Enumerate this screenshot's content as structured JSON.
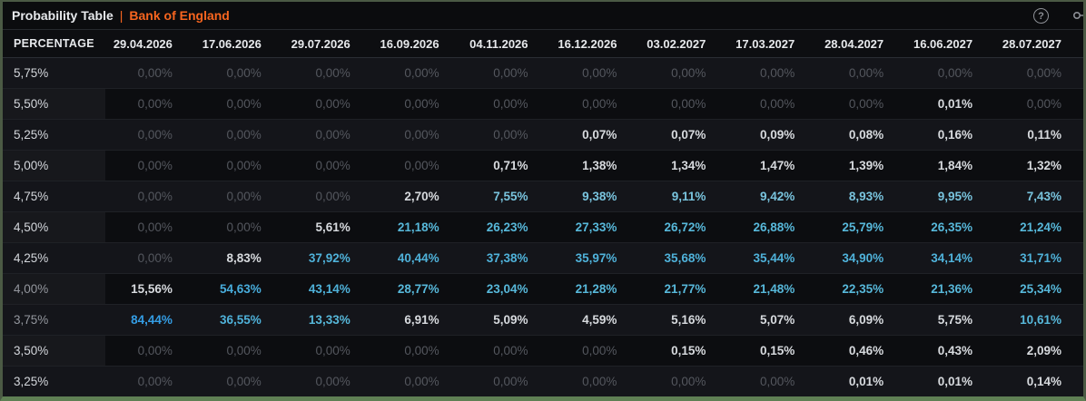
{
  "panel": {
    "title": "Probability Table",
    "separator": "|",
    "source": "Bank of England",
    "icons": [
      {
        "name": "help-icon",
        "glyph": "?"
      },
      {
        "name": "key-icon",
        "glyph": "key"
      }
    ]
  },
  "colors": {
    "accent_orange": "#f7651f",
    "zero_gray": "#54575e",
    "value_white": "#d7dade",
    "cyan_light": "#79c4de",
    "cyan": "#57b8da",
    "cyan_deep": "#4fb2da",
    "blue_max": "#349de4",
    "frame_green": "#4b5a44",
    "frame_green_bottom": "#5f8054"
  },
  "table": {
    "corner_label": "PERCENTAGE",
    "columns": [
      "29.04.2026",
      "17.06.2026",
      "29.07.2026",
      "16.09.2026",
      "04.11.2026",
      "16.12.2026",
      "03.02.2027",
      "17.03.2027",
      "28.04.2027",
      "16.06.2027",
      "28.07.2027"
    ],
    "rows": [
      {
        "label": "5,75%",
        "dim": false,
        "values": [
          "0,00%",
          "0,00%",
          "0,00%",
          "0,00%",
          "0,00%",
          "0,00%",
          "0,00%",
          "0,00%",
          "0,00%",
          "0,00%",
          "0,00%"
        ]
      },
      {
        "label": "5,50%",
        "dim": false,
        "values": [
          "0,00%",
          "0,00%",
          "0,00%",
          "0,00%",
          "0,00%",
          "0,00%",
          "0,00%",
          "0,00%",
          "0,00%",
          "0,01%",
          "0,00%"
        ]
      },
      {
        "label": "5,25%",
        "dim": false,
        "values": [
          "0,00%",
          "0,00%",
          "0,00%",
          "0,00%",
          "0,00%",
          "0,07%",
          "0,07%",
          "0,09%",
          "0,08%",
          "0,16%",
          "0,11%"
        ]
      },
      {
        "label": "5,00%",
        "dim": false,
        "values": [
          "0,00%",
          "0,00%",
          "0,00%",
          "0,00%",
          "0,71%",
          "1,38%",
          "1,34%",
          "1,47%",
          "1,39%",
          "1,84%",
          "1,32%"
        ]
      },
      {
        "label": "4,75%",
        "dim": false,
        "values": [
          "0,00%",
          "0,00%",
          "0,00%",
          "2,70%",
          "7,55%",
          "9,38%",
          "9,11%",
          "9,42%",
          "8,93%",
          "9,95%",
          "7,43%"
        ]
      },
      {
        "label": "4,50%",
        "dim": false,
        "values": [
          "0,00%",
          "0,00%",
          "5,61%",
          "21,18%",
          "26,23%",
          "27,33%",
          "26,72%",
          "26,88%",
          "25,79%",
          "26,35%",
          "21,24%"
        ]
      },
      {
        "label": "4,25%",
        "dim": false,
        "values": [
          "0,00%",
          "8,83%",
          "37,92%",
          "40,44%",
          "37,38%",
          "35,97%",
          "35,68%",
          "35,44%",
          "34,90%",
          "34,14%",
          "31,71%"
        ]
      },
      {
        "label": "4,00%",
        "dim": true,
        "values": [
          "15,56%",
          "54,63%",
          "43,14%",
          "28,77%",
          "23,04%",
          "21,28%",
          "21,77%",
          "21,48%",
          "22,35%",
          "21,36%",
          "25,34%"
        ]
      },
      {
        "label": "3,75%",
        "dim": true,
        "values": [
          "84,44%",
          "36,55%",
          "13,33%",
          "6,91%",
          "5,09%",
          "4,59%",
          "5,16%",
          "5,07%",
          "6,09%",
          "5,75%",
          "10,61%"
        ]
      },
      {
        "label": "3,50%",
        "dim": false,
        "values": [
          "0,00%",
          "0,00%",
          "0,00%",
          "0,00%",
          "0,00%",
          "0,00%",
          "0,15%",
          "0,15%",
          "0,46%",
          "0,43%",
          "2,09%"
        ]
      },
      {
        "label": "3,25%",
        "dim": false,
        "values": [
          "0,00%",
          "0,00%",
          "0,00%",
          "0,00%",
          "0,00%",
          "0,00%",
          "0,00%",
          "0,00%",
          "0,01%",
          "0,01%",
          "0,14%"
        ]
      }
    ]
  }
}
